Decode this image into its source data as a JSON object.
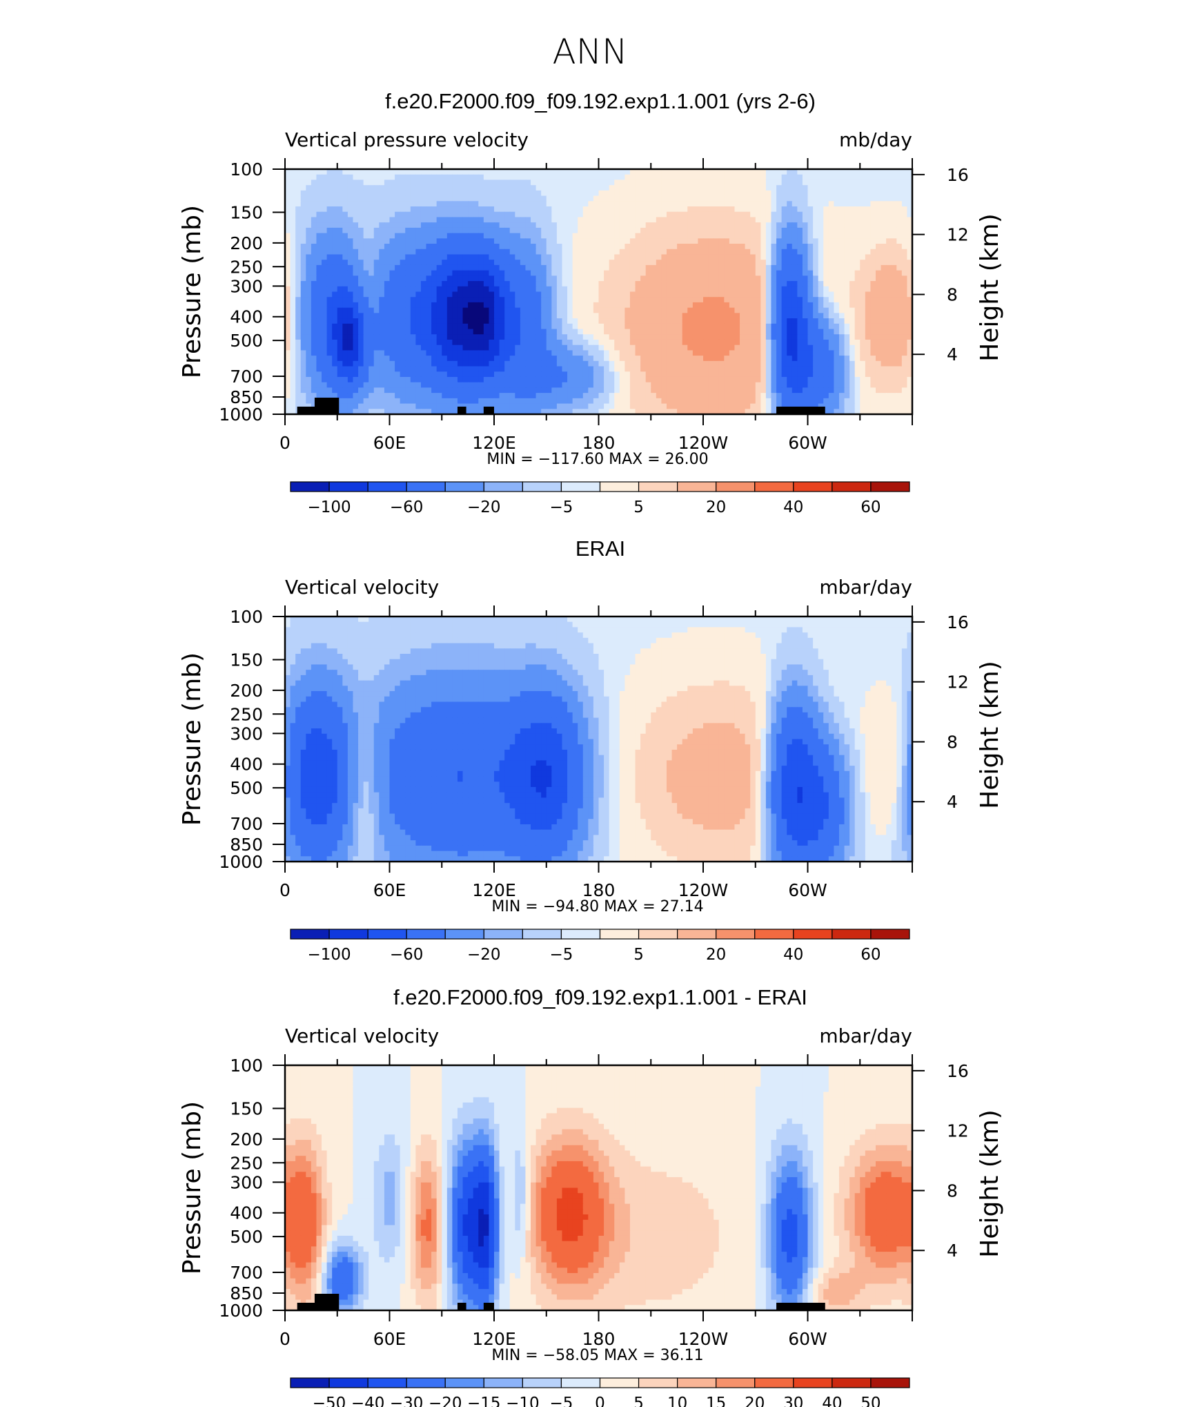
{
  "figure_title": "ANN",
  "levels_std": [
    -100,
    -80,
    -60,
    -40,
    -20,
    -10,
    -5,
    -1,
    1,
    5,
    10,
    20,
    30,
    40,
    50,
    60
  ],
  "levels_diff": [
    -50,
    -40,
    -30,
    -20,
    -15,
    -10,
    -5,
    0,
    5,
    10,
    15,
    20,
    30,
    40,
    50
  ],
  "colors_std": [
    "#08087a",
    "#0a1fb5",
    "#1039de",
    "#2055f0",
    "#3a72f5",
    "#5c93f7",
    "#8cb3f9",
    "#b8d2fb",
    "#dcebfc",
    "#fdeedd",
    "#fcd4bd",
    "#f9b596",
    "#f6926c",
    "#f36a40",
    "#e8431f",
    "#cc2810",
    "#a8140a",
    "#820000"
  ],
  "colors_diff": [
    "#08087a",
    "#0a1fb5",
    "#1039de",
    "#2055f0",
    "#3a72f5",
    "#5c93f7",
    "#8cb3f9",
    "#b8d2fb",
    "#dcebfc",
    "#fdeedd",
    "#fcd4bd",
    "#f9b596",
    "#f6926c",
    "#f36a40",
    "#e8431f",
    "#cc2810",
    "#a8140a",
    "#820000"
  ],
  "chart_data": [
    {
      "type": "heatmap",
      "title": "f.e20.F2000.f09_f09.192.exp1.1.001 (yrs 2-6)",
      "left_label": "Vertical pressure velocity",
      "right_label": "mb/day",
      "ylabel": "Pressure (mb)",
      "y2label": "Height (km)",
      "x_ticklabels": [
        "0",
        "60E",
        "120E",
        "180",
        "120W",
        "60W"
      ],
      "y_ticklabels": [
        "100",
        "150",
        "200",
        "250",
        "300",
        "400",
        "500",
        "700",
        "850",
        "1000"
      ],
      "y2_ticklabels": [
        "16",
        "12",
        "8",
        "4"
      ],
      "xlim": [
        0,
        360
      ],
      "ylim": [
        1000,
        100
      ],
      "ylog": true,
      "min_max_text": "MIN = −117.60   MAX =   26.00",
      "colorbar_labels": [
        "−100",
        "−60",
        "−20",
        "−5",
        "5",
        "20",
        "40",
        "60"
      ],
      "field_features": [
        {
          "lon": 28,
          "p": 400,
          "value": -40,
          "width_deg": 14,
          "depth": 0.9
        },
        {
          "lon": 38,
          "p": 500,
          "value": -60,
          "width_deg": 7,
          "depth": 0.5
        },
        {
          "lon": 45,
          "p": 380,
          "value": 14,
          "width_deg": 6,
          "depth": 0.7
        },
        {
          "lon": 72,
          "p": 400,
          "value": -35,
          "width_deg": 14,
          "depth": 0.9
        },
        {
          "lon": 100,
          "p": 400,
          "value": -85,
          "width_deg": 12,
          "depth": 0.8
        },
        {
          "lon": 116,
          "p": 400,
          "value": -55,
          "width_deg": 8,
          "depth": 0.7
        },
        {
          "lon": 135,
          "p": 420,
          "value": -35,
          "width_deg": 12,
          "depth": 0.9
        },
        {
          "lon": 160,
          "p": 700,
          "value": -20,
          "width_deg": 20,
          "depth": 0.4
        },
        {
          "lon": 245,
          "p": 450,
          "value": 22,
          "width_deg": 40,
          "depth": 1.2
        },
        {
          "lon": 290,
          "p": 450,
          "value": -70,
          "width_deg": 8,
          "depth": 1.0
        },
        {
          "lon": 307,
          "p": 650,
          "value": -35,
          "width_deg": 10,
          "depth": 0.6
        },
        {
          "lon": 350,
          "p": 400,
          "value": 18,
          "width_deg": 14,
          "depth": 0.8
        }
      ],
      "land_lon_ranges": [
        [
          7,
          27
        ],
        [
          17,
          31
        ],
        [
          99,
          104
        ],
        [
          114,
          120
        ],
        [
          282,
          310
        ]
      ]
    },
    {
      "type": "heatmap",
      "title": "ERAI",
      "left_label": "Vertical velocity",
      "right_label": "mbar/day",
      "ylabel": "Pressure (mb)",
      "y2label": "Height (km)",
      "x_ticklabels": [
        "0",
        "60E",
        "120E",
        "180",
        "120W",
        "60W"
      ],
      "y_ticklabels": [
        "100",
        "150",
        "200",
        "250",
        "300",
        "400",
        "500",
        "700",
        "850",
        "1000"
      ],
      "y2_ticklabels": [
        "16",
        "12",
        "8",
        "4"
      ],
      "xlim": [
        0,
        360
      ],
      "ylim": [
        1000,
        100
      ],
      "ylog": true,
      "min_max_text": "MIN = −94.80   MAX =   27.14",
      "colorbar_labels": [
        "−100",
        "−60",
        "−20",
        "−5",
        "5",
        "20",
        "40",
        "60"
      ],
      "field_features": [
        {
          "lon": 18,
          "p": 450,
          "value": -50,
          "width_deg": 14,
          "depth": 1.0
        },
        {
          "lon": 45,
          "p": 500,
          "value": 18,
          "width_deg": 8,
          "depth": 0.9
        },
        {
          "lon": 100,
          "p": 450,
          "value": -40,
          "width_deg": 40,
          "depth": 1.1
        },
        {
          "lon": 150,
          "p": 450,
          "value": -45,
          "width_deg": 14,
          "depth": 0.9
        },
        {
          "lon": 250,
          "p": 450,
          "value": 14,
          "width_deg": 40,
          "depth": 1.1
        },
        {
          "lon": 292,
          "p": 500,
          "value": -60,
          "width_deg": 10,
          "depth": 1.0
        },
        {
          "lon": 310,
          "p": 600,
          "value": -35,
          "width_deg": 10,
          "depth": 0.8
        },
        {
          "lon": 352,
          "p": 400,
          "value": 10,
          "width_deg": 10,
          "depth": 0.8
        }
      ],
      "land_lon_ranges": []
    },
    {
      "type": "heatmap",
      "title": "f.e20.F2000.f09_f09.192.exp1.1.001 - ERAI",
      "left_label": "Vertical velocity",
      "right_label": "mbar/day",
      "ylabel": "Pressure (mb)",
      "y2label": "Height (km)",
      "x_ticklabels": [
        "0",
        "60E",
        "120E",
        "180",
        "120W",
        "60W"
      ],
      "y_ticklabels": [
        "100",
        "150",
        "200",
        "250",
        "300",
        "400",
        "500",
        "700",
        "850",
        "1000"
      ],
      "y2_ticklabels": [
        "16",
        "12",
        "8",
        "4"
      ],
      "xlim": [
        0,
        360
      ],
      "ylim": [
        1000,
        100
      ],
      "ylog": true,
      "min_max_text": "MIN = −58.05   MAX =   36.11",
      "colorbar_labels": [
        "−50",
        "−40",
        "−30",
        "−20",
        "−15",
        "−10",
        "−5",
        "0",
        "5",
        "10",
        "15",
        "20",
        "30",
        "40",
        "50"
      ],
      "field_features": [
        {
          "lon": 12,
          "p": 450,
          "value": 22,
          "width_deg": 8,
          "depth": 1.0
        },
        {
          "lon": 33,
          "p": 750,
          "value": -30,
          "width_deg": 8,
          "depth": 0.4
        },
        {
          "lon": 60,
          "p": 350,
          "value": -12,
          "width_deg": 7,
          "depth": 0.8
        },
        {
          "lon": 82,
          "p": 450,
          "value": 22,
          "width_deg": 7,
          "depth": 0.9
        },
        {
          "lon": 105,
          "p": 450,
          "value": -40,
          "width_deg": 8,
          "depth": 1.0
        },
        {
          "lon": 116,
          "p": 450,
          "value": -35,
          "width_deg": 5,
          "depth": 1.0
        },
        {
          "lon": 135,
          "p": 350,
          "value": -15,
          "width_deg": 4,
          "depth": 0.8
        },
        {
          "lon": 163,
          "p": 400,
          "value": 30,
          "width_deg": 16,
          "depth": 0.9
        },
        {
          "lon": 210,
          "p": 500,
          "value": 8,
          "width_deg": 40,
          "depth": 1.1
        },
        {
          "lon": 290,
          "p": 500,
          "value": -35,
          "width_deg": 9,
          "depth": 1.0
        },
        {
          "lon": 345,
          "p": 400,
          "value": 28,
          "width_deg": 16,
          "depth": 0.8
        },
        {
          "lon": 315,
          "p": 850,
          "value": 12,
          "width_deg": 12,
          "depth": 0.3
        }
      ],
      "land_lon_ranges": [
        [
          7,
          27
        ],
        [
          17,
          31
        ],
        [
          99,
          104
        ],
        [
          114,
          120
        ],
        [
          282,
          310
        ]
      ]
    }
  ]
}
